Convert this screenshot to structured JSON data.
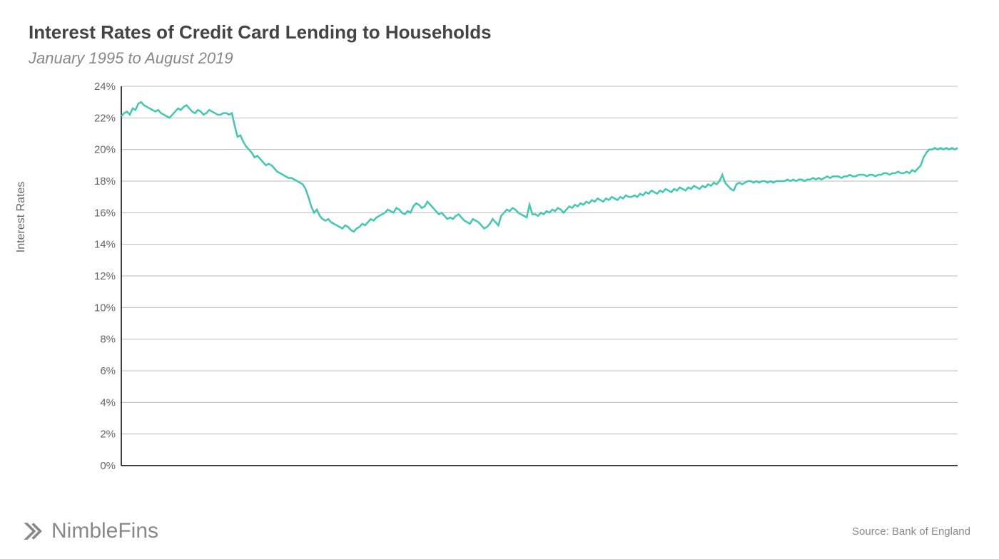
{
  "chart": {
    "type": "line",
    "title": "Interest Rates of Credit Card Lending to Households",
    "subtitle": "January 1995 to August 2019",
    "ylabel": "Interest Rates",
    "title_fontsize": 26,
    "subtitle_fontsize": 22,
    "label_fontsize": 16,
    "tick_fontsize": 15,
    "title_color": "#444444",
    "subtitle_color": "#888888",
    "text_color": "#666666",
    "background_color": "#ffffff",
    "grid_color": "#bbbbbb",
    "axis_color": "#000000",
    "line_color": "#3fc9b0",
    "line_width": 2.5,
    "ylim": [
      0,
      24
    ],
    "ytick_step": 2,
    "ytick_suffix": "%",
    "x_start": "1995-01",
    "x_end": "2019-08",
    "data": [
      22.1,
      22.3,
      22.4,
      22.2,
      22.6,
      22.5,
      22.9,
      23.0,
      22.8,
      22.7,
      22.6,
      22.5,
      22.4,
      22.5,
      22.3,
      22.2,
      22.1,
      22.0,
      22.2,
      22.4,
      22.6,
      22.5,
      22.7,
      22.8,
      22.6,
      22.4,
      22.3,
      22.5,
      22.4,
      22.2,
      22.3,
      22.5,
      22.4,
      22.3,
      22.2,
      22.2,
      22.3,
      22.3,
      22.2,
      22.3,
      21.5,
      20.8,
      20.9,
      20.5,
      20.2,
      20.0,
      19.8,
      19.5,
      19.6,
      19.4,
      19.2,
      19.0,
      19.1,
      19.0,
      18.8,
      18.6,
      18.5,
      18.4,
      18.3,
      18.2,
      18.2,
      18.1,
      18.0,
      17.9,
      17.8,
      17.5,
      17.0,
      16.4,
      16.0,
      16.2,
      15.8,
      15.6,
      15.5,
      15.6,
      15.4,
      15.3,
      15.2,
      15.1,
      15.0,
      15.2,
      15.1,
      14.9,
      14.8,
      15.0,
      15.1,
      15.3,
      15.2,
      15.4,
      15.6,
      15.5,
      15.7,
      15.8,
      15.9,
      16.0,
      16.2,
      16.1,
      16.0,
      16.3,
      16.2,
      16.0,
      15.9,
      16.1,
      16.0,
      16.4,
      16.6,
      16.5,
      16.3,
      16.4,
      16.7,
      16.5,
      16.3,
      16.1,
      15.9,
      16.0,
      15.8,
      15.6,
      15.7,
      15.6,
      15.8,
      15.9,
      15.7,
      15.5,
      15.4,
      15.3,
      15.6,
      15.5,
      15.4,
      15.2,
      15.0,
      15.1,
      15.3,
      15.6,
      15.4,
      15.2,
      15.8,
      16.0,
      16.2,
      16.1,
      16.3,
      16.2,
      16.0,
      15.9,
      15.8,
      15.7,
      16.5,
      15.9,
      15.9,
      15.8,
      16.0,
      15.9,
      16.1,
      16.0,
      16.2,
      16.1,
      16.3,
      16.2,
      16.0,
      16.2,
      16.4,
      16.3,
      16.5,
      16.4,
      16.6,
      16.5,
      16.7,
      16.6,
      16.8,
      16.7,
      16.9,
      16.8,
      16.7,
      16.9,
      16.8,
      17.0,
      16.9,
      16.8,
      17.0,
      16.9,
      17.1,
      17.0,
      17.0,
      17.1,
      17.0,
      17.2,
      17.1,
      17.3,
      17.2,
      17.4,
      17.3,
      17.2,
      17.4,
      17.3,
      17.5,
      17.4,
      17.3,
      17.5,
      17.4,
      17.6,
      17.5,
      17.4,
      17.6,
      17.5,
      17.7,
      17.6,
      17.5,
      17.7,
      17.6,
      17.8,
      17.7,
      17.9,
      17.8,
      18.0,
      18.4,
      17.9,
      17.7,
      17.5,
      17.4,
      17.8,
      17.9,
      17.8,
      17.9,
      18.0,
      18.0,
      17.9,
      18.0,
      17.9,
      18.0,
      18.0,
      17.9,
      18.0,
      17.9,
      18.0,
      18.0,
      18.0,
      18.0,
      18.1,
      18.0,
      18.1,
      18.0,
      18.1,
      18.1,
      18.0,
      18.1,
      18.1,
      18.2,
      18.1,
      18.2,
      18.1,
      18.2,
      18.3,
      18.2,
      18.3,
      18.3,
      18.3,
      18.2,
      18.3,
      18.3,
      18.4,
      18.3,
      18.3,
      18.4,
      18.4,
      18.4,
      18.3,
      18.4,
      18.4,
      18.3,
      18.4,
      18.4,
      18.5,
      18.5,
      18.4,
      18.5,
      18.5,
      18.6,
      18.5,
      18.5,
      18.6,
      18.5,
      18.7,
      18.6,
      18.8,
      19.0,
      19.5,
      19.8,
      20.0,
      20.0,
      20.1,
      20.0,
      20.1,
      20.0,
      20.1,
      20.0,
      20.1,
      20.0,
      20.1
    ]
  },
  "footer": {
    "brand": "NimbleFins",
    "brand_color": "#888888",
    "source": "Source: Bank of England"
  }
}
